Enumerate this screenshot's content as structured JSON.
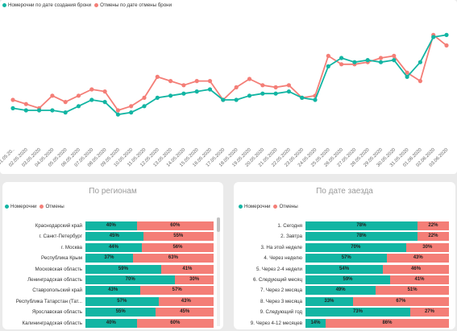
{
  "colors": {
    "teal": "#12b5a3",
    "salmon": "#f47e77"
  },
  "top_chart": {
    "legend": [
      "Номерочни по дате создания брони",
      "Отмены по дате отмены брони"
    ]
  },
  "chart_data": [
    {
      "type": "line",
      "x": [
        "01.05.20..",
        "02.05.2020",
        "03.05.2020",
        "04.05.2020",
        "05.05.2020",
        "06.05.2020",
        "07.05.2020",
        "08.05.2020",
        "09.05.2020",
        "10.05.2020",
        "11.05.2020",
        "12.05.2020",
        "13.05.2020",
        "14.05.2020",
        "15.05.2020",
        "16.05.2020",
        "17.05.2020",
        "18.05.2020",
        "19.05.2020",
        "20.05.2020",
        "21.05.2020",
        "22.05.2020",
        "23.05.2020",
        "24.05.2020",
        "25.05.2020",
        "26.05.2020",
        "27.05.2020",
        "28.05.2020",
        "29.05.2020",
        "30.05.2020",
        "31.05.2020",
        "01.06.2020",
        "02.06.2020",
        "03.06.2020"
      ],
      "series": [
        {
          "name": "Номерочни по дате создания брони",
          "values": [
            16,
            15,
            15,
            15,
            14,
            17,
            20,
            19,
            13,
            14,
            17,
            21,
            22,
            23,
            24,
            25,
            20,
            20,
            22,
            23,
            23,
            24,
            21,
            20,
            36,
            40,
            38,
            39,
            38,
            39,
            31,
            38,
            50,
            51
          ]
        },
        {
          "name": "Отмены по дате отмены брони",
          "values": [
            20,
            18,
            16,
            22,
            19,
            22,
            25,
            24,
            15,
            17,
            21,
            31,
            29,
            27,
            29,
            29,
            20,
            26,
            30,
            27,
            26,
            27,
            21,
            22,
            41,
            37,
            37,
            38,
            40,
            41,
            33,
            29,
            51,
            46
          ]
        }
      ],
      "ylim": [
        0,
        60
      ]
    },
    {
      "type": "bar",
      "title": "По регионам",
      "stacked": "100%",
      "categories": [
        "Краснодарский край",
        "г. Санкт-Петербург",
        "г. Москва",
        "Республика Крым",
        "Московская область",
        "Ленинградская область",
        "Ставропольский край",
        "Республика Татарстан (Тат...",
        "Ярославская область",
        "Калининградская область"
      ],
      "series": [
        {
          "name": "Номерочни",
          "values": [
            40,
            45,
            44,
            37,
            59,
            70,
            43,
            57,
            55,
            40
          ]
        },
        {
          "name": "Отмены",
          "values": [
            60,
            55,
            56,
            63,
            41,
            30,
            57,
            43,
            45,
            60
          ]
        }
      ]
    },
    {
      "type": "bar",
      "title": "По дате заезда",
      "stacked": "100%",
      "categories": [
        "1. Сегодня",
        "2. Завтра",
        "3. На этой неделе",
        "4. Через неделю",
        "5. Через 2-4 недели",
        "6. Следующий месяц",
        "7. Через 2 месяца",
        "8. Через 3 месяца",
        "9. Следующий год",
        "9. Через 4-12 месяцев"
      ],
      "series": [
        {
          "name": "Номерочни",
          "values": [
            78,
            78,
            70,
            57,
            54,
            59,
            49,
            33,
            73,
            14
          ]
        },
        {
          "name": "Отмены",
          "values": [
            22,
            22,
            30,
            43,
            46,
            41,
            51,
            67,
            27,
            86
          ]
        }
      ]
    }
  ],
  "region_panel": {
    "title": "По регионам",
    "legend": [
      "Номерочни",
      "Отмены"
    ],
    "rows": [
      {
        "label": "Краснодарский край",
        "a": "40%",
        "b": "60%"
      },
      {
        "label": "г. Санкт-Петербург",
        "a": "45%",
        "b": "55%"
      },
      {
        "label": "г. Москва",
        "a": "44%",
        "b": "56%"
      },
      {
        "label": "Республика Крым",
        "a": "37%",
        "b": "63%"
      },
      {
        "label": "Московская область",
        "a": "59%",
        "b": "41%"
      },
      {
        "label": "Ленинградская область",
        "a": "70%",
        "b": "30%"
      },
      {
        "label": "Ставропольский край",
        "a": "43%",
        "b": "57%"
      },
      {
        "label": "Республика Татарстан (Тат...",
        "a": "57%",
        "b": "43%"
      },
      {
        "label": "Ярославская область",
        "a": "55%",
        "b": "45%"
      },
      {
        "label": "Калининградская область",
        "a": "40%",
        "b": "60%"
      }
    ]
  },
  "arrival_panel": {
    "title": "По дате заезда",
    "legend": [
      "Номерочни",
      "Отмены"
    ],
    "rows": [
      {
        "label": "1. Сегодня",
        "a": "78%",
        "b": "22%"
      },
      {
        "label": "2. Завтра",
        "a": "78%",
        "b": "22%"
      },
      {
        "label": "3. На этой неделе",
        "a": "70%",
        "b": "30%"
      },
      {
        "label": "4. Через неделю",
        "a": "57%",
        "b": "43%"
      },
      {
        "label": "5. Через 2-4 недели",
        "a": "54%",
        "b": "46%"
      },
      {
        "label": "6. Следующий месяц",
        "a": "59%",
        "b": "41%"
      },
      {
        "label": "7. Через 2 месяца",
        "a": "49%",
        "b": "51%"
      },
      {
        "label": "8. Через 3 месяца",
        "a": "33%",
        "b": "67%"
      },
      {
        "label": "9. Следующий год",
        "a": "73%",
        "b": "27%"
      },
      {
        "label": "9. Через 4-12 месяцев",
        "a": "14%",
        "b": "86%"
      }
    ]
  }
}
